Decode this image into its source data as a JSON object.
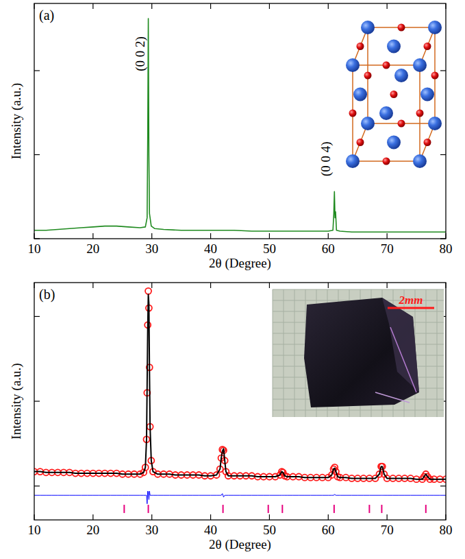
{
  "chart_data": [
    {
      "type": "line",
      "title": "(a)",
      "x_label": "2θ (Degree)",
      "y_label": "Intensity (a.u.)",
      "xlim": [
        10,
        80
      ],
      "xticks": [
        10,
        20,
        30,
        40,
        50,
        60,
        70,
        80
      ],
      "ylim": [
        0,
        2.8
      ],
      "yticks": [
        0,
        1,
        2
      ],
      "tick_labels": "x",
      "grid": false,
      "series": [
        {
          "type": "line",
          "color": "#1f8a1f",
          "line_style": "solid",
          "x": [
            10,
            12,
            14,
            16,
            18,
            20,
            22,
            24,
            26,
            28,
            28.9,
            29.2,
            29.3,
            29.4,
            29.5,
            29.6,
            29.9,
            30.5,
            32,
            35,
            38,
            41,
            44,
            47,
            50,
            53,
            56,
            58,
            60,
            60.8,
            60.95,
            61.05,
            61.15,
            61.25,
            61.4,
            62,
            64,
            67,
            70,
            73,
            76,
            78,
            80
          ],
          "values": [
            0.1,
            0.1,
            0.11,
            0.12,
            0.13,
            0.14,
            0.15,
            0.15,
            0.14,
            0.13,
            0.14,
            0.25,
            1.2,
            2.62,
            1.0,
            0.3,
            0.15,
            0.12,
            0.11,
            0.1,
            0.1,
            0.1,
            0.1,
            0.09,
            0.09,
            0.09,
            0.09,
            0.09,
            0.09,
            0.1,
            0.3,
            0.56,
            0.25,
            0.32,
            0.1,
            0.09,
            0.08,
            0.08,
            0.08,
            0.08,
            0.08,
            0.08,
            0.08
          ]
        }
      ],
      "annotations": [
        {
          "text": "(0 0 2)",
          "x": 28.0,
          "y": 2.2
        },
        {
          "text": "(0 0 4)",
          "x": 59.6,
          "y": 0.95
        }
      ]
    },
    {
      "type": "line",
      "title": "(b)",
      "x_label": "2θ (Degree)",
      "y_label": "Intensity (a.u.)",
      "xlim": [
        10,
        80
      ],
      "xticks": [
        10,
        20,
        30,
        40,
        50,
        60,
        70,
        80
      ],
      "ylim": [
        -0.4,
        2.4
      ],
      "yticks": [
        0,
        1,
        2
      ],
      "tick_labels": "x",
      "grid": false,
      "series": [
        {
          "type": "scatter",
          "color": "#ff1a1a",
          "marker": "circle",
          "line_style": "none",
          "x": [
            10,
            11,
            12,
            13,
            14,
            15,
            16,
            17,
            18,
            19,
            20,
            21,
            22,
            23,
            24,
            25,
            26,
            27,
            28,
            28.6,
            28.9,
            29.1,
            29.2,
            29.3,
            29.4,
            29.5,
            29.6,
            29.7,
            29.9,
            30.2,
            31,
            32,
            33,
            34,
            35,
            36,
            37,
            38,
            39,
            40,
            41,
            41.6,
            41.8,
            42.0,
            42.2,
            42.4,
            42.6,
            43,
            44,
            45,
            46,
            47,
            48,
            49,
            50,
            51,
            51.8,
            52.1,
            52.3,
            52.6,
            53,
            54,
            55,
            56,
            57,
            58,
            59,
            60,
            60.6,
            60.9,
            61.1,
            61.3,
            61.6,
            62,
            63,
            64,
            65,
            66,
            67,
            68,
            68.7,
            69.0,
            69.2,
            69.5,
            70,
            71,
            72,
            73,
            74,
            75,
            76,
            76.3,
            76.6,
            76.9,
            77.3,
            78,
            79,
            80
          ],
          "values": [
            0.17,
            0.17,
            0.16,
            0.16,
            0.16,
            0.16,
            0.16,
            0.15,
            0.15,
            0.15,
            0.15,
            0.15,
            0.15,
            0.15,
            0.15,
            0.14,
            0.14,
            0.14,
            0.14,
            0.16,
            0.22,
            0.55,
            1.1,
            1.9,
            2.3,
            2.1,
            1.4,
            0.7,
            0.3,
            0.17,
            0.14,
            0.14,
            0.14,
            0.13,
            0.13,
            0.13,
            0.13,
            0.13,
            0.12,
            0.12,
            0.13,
            0.2,
            0.33,
            0.43,
            0.42,
            0.3,
            0.17,
            0.12,
            0.12,
            0.12,
            0.12,
            0.12,
            0.11,
            0.11,
            0.11,
            0.11,
            0.13,
            0.17,
            0.16,
            0.12,
            0.11,
            0.11,
            0.11,
            0.1,
            0.1,
            0.1,
            0.1,
            0.1,
            0.13,
            0.2,
            0.22,
            0.17,
            0.11,
            0.1,
            0.1,
            0.09,
            0.09,
            0.09,
            0.09,
            0.09,
            0.14,
            0.23,
            0.23,
            0.14,
            0.09,
            0.09,
            0.09,
            0.09,
            0.09,
            0.08,
            0.08,
            0.11,
            0.14,
            0.11,
            0.08,
            0.08,
            0.08,
            0.08
          ]
        },
        {
          "type": "line",
          "color": "#000000",
          "line_style": "solid",
          "x": [
            10,
            11,
            12,
            13,
            14,
            15,
            16,
            17,
            18,
            19,
            20,
            21,
            22,
            23,
            24,
            25,
            26,
            27,
            28,
            28.6,
            28.9,
            29.1,
            29.2,
            29.3,
            29.4,
            29.5,
            29.6,
            29.7,
            29.9,
            30.2,
            31,
            32,
            33,
            34,
            35,
            36,
            37,
            38,
            39,
            40,
            41,
            41.6,
            41.8,
            42.0,
            42.2,
            42.4,
            42.6,
            43,
            44,
            45,
            46,
            47,
            48,
            49,
            50,
            51,
            51.8,
            52.1,
            52.3,
            52.6,
            53,
            54,
            55,
            56,
            57,
            58,
            59,
            60,
            60.6,
            60.9,
            61.1,
            61.3,
            61.6,
            62,
            63,
            64,
            65,
            66,
            67,
            68,
            68.7,
            69.0,
            69.2,
            69.5,
            70,
            71,
            72,
            73,
            74,
            75,
            76,
            76.3,
            76.6,
            76.9,
            77.3,
            78,
            79,
            80
          ],
          "values": [
            0.17,
            0.17,
            0.16,
            0.16,
            0.16,
            0.16,
            0.16,
            0.15,
            0.15,
            0.15,
            0.15,
            0.15,
            0.15,
            0.15,
            0.15,
            0.14,
            0.14,
            0.14,
            0.14,
            0.16,
            0.22,
            0.55,
            1.2,
            1.85,
            2.26,
            2.15,
            1.35,
            0.7,
            0.3,
            0.17,
            0.14,
            0.14,
            0.14,
            0.13,
            0.13,
            0.13,
            0.13,
            0.13,
            0.12,
            0.12,
            0.13,
            0.2,
            0.33,
            0.41,
            0.44,
            0.3,
            0.17,
            0.12,
            0.12,
            0.12,
            0.12,
            0.12,
            0.11,
            0.11,
            0.11,
            0.11,
            0.13,
            0.17,
            0.16,
            0.12,
            0.11,
            0.11,
            0.11,
            0.1,
            0.1,
            0.1,
            0.1,
            0.1,
            0.13,
            0.2,
            0.21,
            0.17,
            0.11,
            0.1,
            0.1,
            0.09,
            0.09,
            0.09,
            0.09,
            0.09,
            0.14,
            0.23,
            0.23,
            0.14,
            0.09,
            0.09,
            0.09,
            0.09,
            0.09,
            0.08,
            0.08,
            0.11,
            0.14,
            0.11,
            0.08,
            0.08,
            0.08,
            0.08
          ]
        },
        {
          "type": "line",
          "color": "#0000ff",
          "line_style": "solid",
          "x": [
            10,
            11,
            12,
            13,
            14,
            15,
            16,
            17,
            18,
            19,
            20,
            21,
            22,
            23,
            24,
            25,
            26,
            27,
            28,
            28.6,
            28.9,
            29.1,
            29.2,
            29.3,
            29.4,
            29.5,
            29.6,
            29.7,
            29.9,
            30.2,
            31,
            32,
            33,
            34,
            35,
            36,
            37,
            38,
            39,
            40,
            41,
            41.6,
            41.8,
            42.0,
            42.2,
            42.4,
            42.6,
            43,
            44,
            45,
            46,
            47,
            48,
            49,
            50,
            51,
            51.8,
            52.1,
            52.3,
            52.6,
            53,
            54,
            55,
            56,
            57,
            58,
            59,
            60,
            60.6,
            60.9,
            61.1,
            61.3,
            61.6,
            62,
            63,
            64,
            65,
            66,
            67,
            68,
            68.7,
            69.0,
            69.2,
            69.5,
            70,
            71,
            72,
            73,
            74,
            75,
            76,
            76.3,
            76.6,
            76.9,
            77.3,
            78,
            79,
            80
          ],
          "values": [
            -0.11,
            -0.11,
            -0.11,
            -0.11,
            -0.11,
            -0.11,
            -0.11,
            -0.11,
            -0.11,
            -0.11,
            -0.11,
            -0.11,
            -0.11,
            -0.11,
            -0.11,
            -0.11,
            -0.11,
            -0.11,
            -0.11,
            -0.11,
            -0.11,
            -0.11,
            -0.21,
            -0.06,
            -0.07,
            -0.16,
            -0.06,
            -0.11,
            -0.11,
            -0.11,
            -0.11,
            -0.11,
            -0.11,
            -0.11,
            -0.11,
            -0.11,
            -0.11,
            -0.11,
            -0.11,
            -0.11,
            -0.11,
            -0.11,
            -0.11,
            -0.09,
            -0.13,
            -0.11,
            -0.11,
            -0.11,
            -0.11,
            -0.11,
            -0.11,
            -0.11,
            -0.11,
            -0.11,
            -0.11,
            -0.11,
            -0.11,
            -0.11,
            -0.11,
            -0.11,
            -0.11,
            -0.11,
            -0.11,
            -0.11,
            -0.11,
            -0.11,
            -0.11,
            -0.11,
            -0.11,
            -0.11,
            -0.1,
            -0.11,
            -0.11,
            -0.11,
            -0.11,
            -0.11,
            -0.11,
            -0.11,
            -0.11,
            -0.11,
            -0.11,
            -0.11,
            -0.11,
            -0.11,
            -0.11,
            -0.11,
            -0.11,
            -0.11,
            -0.11,
            -0.11,
            -0.11,
            -0.11,
            -0.11,
            -0.11,
            -0.11,
            -0.11,
            -0.11,
            -0.11
          ]
        },
        {
          "type": "tick",
          "color": "#e6007e",
          "marker": "tick",
          "x": [
            25.3,
            29.4,
            42.1,
            49.8,
            52.2,
            61.0,
            67.0,
            69.1,
            76.6
          ],
          "values": [
            -0.27,
            -0.27,
            -0.27,
            -0.27,
            -0.27,
            -0.27,
            -0.27,
            -0.27,
            -0.27
          ]
        }
      ],
      "annotations": [
        {
          "text": "2mm"
        }
      ]
    }
  ]
}
